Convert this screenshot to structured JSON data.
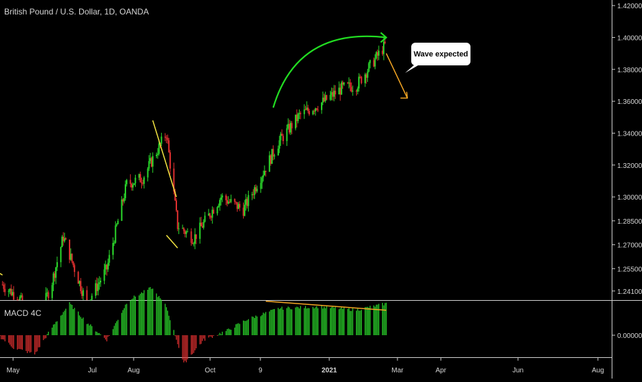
{
  "chart_data": [
    {
      "type": "candlestick",
      "title": "British Pound / U.S. Dollar, 1D, OANDA",
      "y_ticks": [
        "1.42000",
        "1.40000",
        "1.38000",
        "1.36000",
        "1.34000",
        "1.32000",
        "1.30000",
        "1.28500",
        "1.27000",
        "1.25500",
        "1.24100"
      ],
      "x_ticks": [
        "May",
        "Jul",
        "Aug",
        "Oct",
        "9",
        "2021",
        "Mar",
        "Apr",
        "Jun",
        "Aug"
      ],
      "x_range": [
        "2020-04-20",
        "2021-08-20"
      ],
      "ylim": [
        1.234,
        1.425
      ],
      "series": [
        {
          "x": [
            "2020-04-22",
            "2020-05-06",
            "2020-05-18",
            "2020-06-01",
            "2020-06-10",
            "2020-06-29",
            "2020-07-15",
            "2020-07-31",
            "2020-08-13",
            "2020-09-01",
            "2020-09-10",
            "2020-09-23",
            "2020-10-15",
            "2020-11-02",
            "2020-12-01",
            "2020-12-17",
            "2021-01-06",
            "2021-01-20",
            "2021-02-01",
            "2021-02-12",
            "2021-02-24"
          ],
          "close": [
            1.245,
            1.236,
            1.216,
            1.247,
            1.275,
            1.233,
            1.255,
            1.308,
            1.312,
            1.34,
            1.282,
            1.274,
            1.3,
            1.292,
            1.335,
            1.351,
            1.36,
            1.368,
            1.37,
            1.382,
            1.395
          ]
        }
      ],
      "colors": {
        "up": "#2bd92b",
        "down": "#e03030"
      },
      "annotations": {
        "callout": "Wave expected",
        "lines_yellow": [
          {
            "from": [
              "2020-04-20",
              1.252
            ],
            "to": [
              "2020-04-22",
              1.251
            ]
          },
          {
            "from": [
              "2020-08-21",
              1.348
            ],
            "to": [
              "2020-09-09",
              1.3
            ]
          },
          {
            "from": [
              "2020-09-01",
              1.276
            ],
            "to": [
              "2020-09-10",
              1.268
            ]
          }
        ],
        "arc_green": {
          "from": [
            "2020-11-26",
            1.356
          ],
          "to": [
            "2021-02-25",
            1.4
          ]
        },
        "arrow_orange": {
          "from": [
            "2021-02-25",
            1.39
          ],
          "to": [
            "2021-03-14",
            1.362
          ]
        },
        "colors": {
          "yellow": "#f5e642",
          "green": "#22dd22",
          "orange": "#f5a623"
        }
      }
    },
    {
      "type": "bar",
      "title": "MACD 4C",
      "y_ticks": [
        "0.00000"
      ],
      "values_unit": "price",
      "series": [
        {
          "x": [
            "2020-04-20",
            "2020-05-01",
            "2020-05-18",
            "2020-06-01",
            "2020-06-15",
            "2020-06-29",
            "2020-07-15",
            "2020-08-01",
            "2020-08-20",
            "2020-09-01",
            "2020-09-15",
            "2020-10-01",
            "2020-10-20",
            "2020-11-05",
            "2020-12-01",
            "2021-01-01",
            "2021-02-01",
            "2021-02-25"
          ],
          "values": [
            -0.001,
            -0.008,
            -0.012,
            0.005,
            0.02,
            0.008,
            -0.003,
            0.022,
            0.03,
            0.018,
            -0.018,
            -0.003,
            0.003,
            0.01,
            0.017,
            0.018,
            0.016,
            0.02
          ]
        }
      ],
      "colors": {
        "positive": "#2bd92b",
        "negative": "#e03030"
      },
      "annotations": {
        "line_orange": {
          "from": [
            "2020-11-20",
            0.018
          ],
          "to": [
            "2021-02-25",
            0.014
          ]
        }
      }
    }
  ]
}
